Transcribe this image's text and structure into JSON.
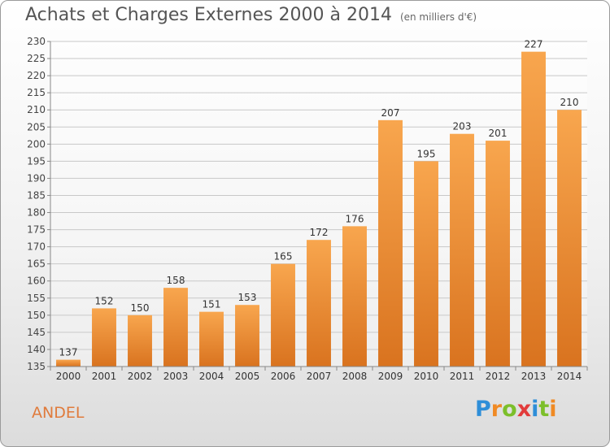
{
  "title": "Achats et Charges Externes 2000 à 2014",
  "subtitle": "(en milliers d'€)",
  "location": "ANDEL",
  "logo": {
    "letters": [
      "P",
      "r",
      "o",
      "x",
      "i",
      "t",
      "i"
    ],
    "colors": [
      "#2e8ed8",
      "#f08a24",
      "#7cbf2a",
      "#e23b3b",
      "#2e8ed8",
      "#7cbf2a",
      "#f08a24"
    ]
  },
  "chart_data": {
    "type": "bar",
    "categories": [
      "2000",
      "2001",
      "2002",
      "2003",
      "2004",
      "2005",
      "2006",
      "2007",
      "2008",
      "2009",
      "2010",
      "2011",
      "2012",
      "2013",
      "2014"
    ],
    "values": [
      137,
      152,
      150,
      158,
      151,
      153,
      165,
      172,
      176,
      207,
      195,
      203,
      201,
      227,
      210
    ],
    "ylim": [
      135,
      230
    ],
    "yticks": [
      135,
      140,
      145,
      150,
      155,
      160,
      165,
      170,
      175,
      180,
      185,
      190,
      195,
      200,
      205,
      210,
      215,
      220,
      225,
      230
    ],
    "grid": true,
    "bar_color": "#f0963f"
  }
}
